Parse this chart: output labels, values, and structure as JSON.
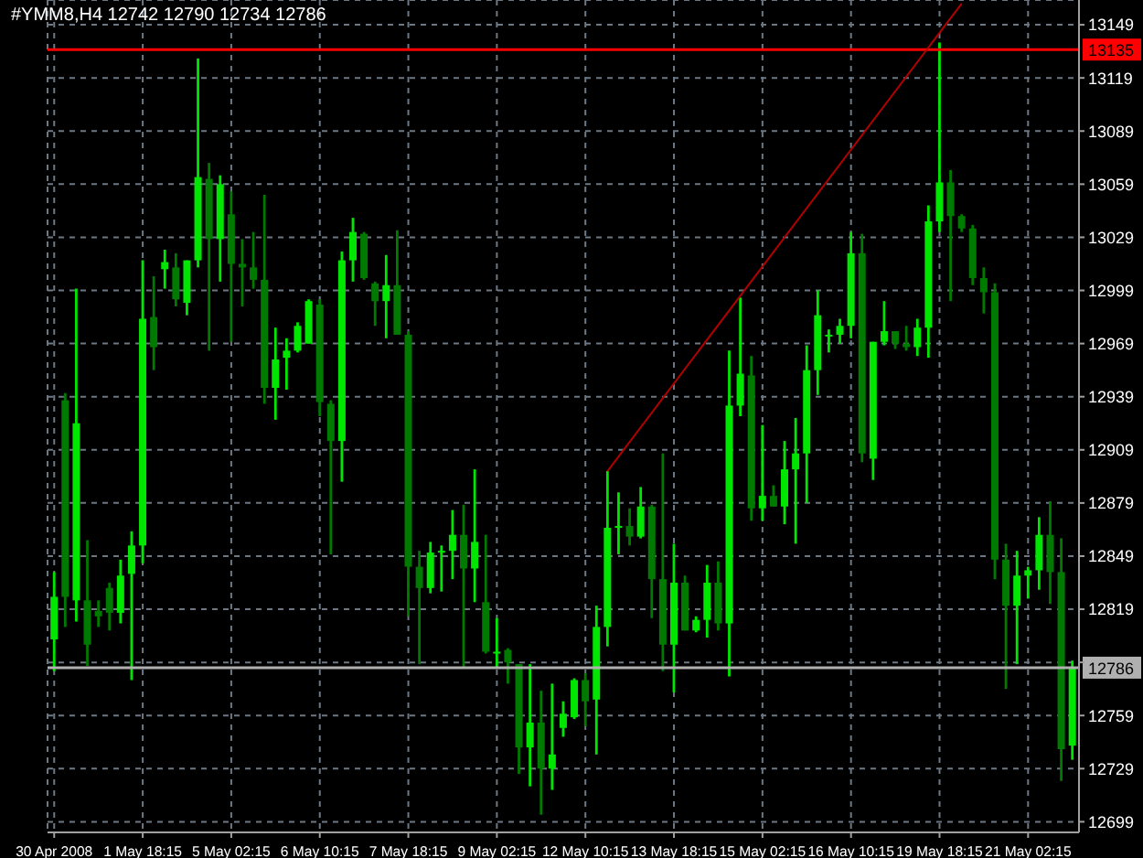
{
  "chart_data": {
    "type": "candlestick",
    "title": "#YMM8,H4 12742 12790 12734 12786",
    "categories": [
      "30 Apr 2008",
      null,
      null,
      null,
      null,
      null,
      null,
      null,
      "1 May 18:15",
      null,
      null,
      null,
      null,
      null,
      null,
      null,
      "5 May 02:15",
      null,
      null,
      null,
      null,
      null,
      null,
      null,
      "6 May 10:15",
      null,
      null,
      null,
      null,
      null,
      null,
      null,
      "7 May 18:15",
      null,
      null,
      null,
      null,
      null,
      null,
      null,
      "9 May 02:15",
      null,
      null,
      null,
      null,
      null,
      null,
      null,
      "12 May 10:15",
      null,
      null,
      null,
      null,
      null,
      null,
      null,
      "13 May 18:15",
      null,
      null,
      null,
      null,
      null,
      null,
      null,
      "15 May 02:15",
      null,
      null,
      null,
      null,
      null,
      null,
      null,
      "16 May 10:15",
      null,
      null,
      null,
      null,
      null,
      null,
      null,
      "19 May 18:15",
      null,
      null,
      null,
      null,
      null,
      null,
      null,
      "21 May 02:15",
      null,
      null,
      null,
      null
    ],
    "ohlc": [
      [
        12802,
        12840,
        12784,
        12826
      ],
      [
        12937,
        12941,
        12809,
        12826
      ],
      [
        12824,
        13000,
        12812,
        12924
      ],
      [
        12824,
        12858,
        12787,
        12799
      ],
      [
        12818,
        12824,
        12809,
        12815
      ],
      [
        12831,
        12834,
        12807,
        12817
      ],
      [
        12817,
        12847,
        12811,
        12838
      ],
      [
        12839,
        12863,
        12779,
        12855
      ],
      [
        12855,
        13016,
        12845,
        12983
      ],
      [
        12984,
        13007,
        12954,
        12967
      ],
      [
        13011,
        13022,
        13000,
        13015
      ],
      [
        13012,
        13020,
        12990,
        12994
      ],
      [
        12992,
        13016,
        12985,
        13016
      ],
      [
        13016,
        13130,
        13012,
        13063
      ],
      [
        13062,
        13071,
        12965,
        13028
      ],
      [
        13028,
        13064,
        13004,
        13059
      ],
      [
        13042,
        13055,
        12970,
        13014
      ],
      [
        13014,
        13028,
        12990,
        13012
      ],
      [
        13012,
        13032,
        13000,
        13005
      ],
      [
        13005,
        13053,
        12935,
        12944
      ],
      [
        12944,
        12978,
        12926,
        12960
      ],
      [
        12961,
        12972,
        12943,
        12965
      ],
      [
        12965,
        12981,
        12964,
        12979
      ],
      [
        12969,
        12994,
        12969,
        12993
      ],
      [
        12991,
        12994,
        12928,
        12936
      ],
      [
        12935,
        12937,
        12850,
        12914
      ],
      [
        12914,
        13021,
        12891,
        13016
      ],
      [
        13016,
        13040,
        13004,
        13032
      ],
      [
        13031,
        13032,
        13005,
        13006
      ],
      [
        13003,
        13004,
        12979,
        12993
      ],
      [
        12993,
        13019,
        12972,
        13002
      ],
      [
        13002,
        13033,
        12974,
        12974
      ],
      [
        12974,
        12976,
        12815,
        12843
      ],
      [
        12843,
        12852,
        12788,
        12831
      ],
      [
        12831,
        12857,
        12828,
        12851
      ],
      [
        12851,
        12855,
        12829,
        12852
      ],
      [
        12852,
        12875,
        12836,
        12861
      ],
      [
        12861,
        12878,
        12786,
        12842
      ],
      [
        12842,
        12898,
        12823,
        12857
      ],
      [
        12823,
        12861,
        12794,
        12795
      ],
      [
        12795,
        12814,
        12786,
        12795
      ],
      [
        12796,
        12797,
        12777,
        12789
      ],
      [
        12788,
        12788,
        12726,
        12741
      ],
      [
        12741,
        12788,
        12719,
        12755
      ],
      [
        12755,
        12773,
        12703,
        12729
      ],
      [
        12729,
        12777,
        12717,
        12737
      ],
      [
        12752,
        12767,
        12747,
        12760
      ],
      [
        12758,
        12780,
        12757,
        12779
      ],
      [
        12779,
        12783,
        12753,
        12767
      ],
      [
        12768,
        12821,
        12737,
        12809
      ],
      [
        12809,
        12897,
        12798,
        12865
      ],
      [
        12865,
        12885,
        12850,
        12866
      ],
      [
        12866,
        12876,
        12855,
        12860
      ],
      [
        12860,
        12888,
        12859,
        12877
      ],
      [
        12877,
        12878,
        12814,
        12836
      ],
      [
        12836,
        12907,
        12784,
        12799
      ],
      [
        12799,
        12856,
        12772,
        12834
      ],
      [
        12834,
        12838,
        12807,
        12807
      ],
      [
        12807,
        12815,
        12806,
        12813
      ],
      [
        12813,
        12844,
        12803,
        12834
      ],
      [
        12834,
        12846,
        12807,
        12811
      ],
      [
        12811,
        12965,
        12781,
        12934
      ],
      [
        12934,
        12995,
        12928,
        12952
      ],
      [
        12951,
        12962,
        12869,
        12876
      ],
      [
        12876,
        12923,
        12869,
        12883
      ],
      [
        12883,
        12889,
        12877,
        12877
      ],
      [
        12877,
        12914,
        12867,
        12898
      ],
      [
        12898,
        12927,
        12856,
        12907
      ],
      [
        12907,
        12968,
        12879,
        12954
      ],
      [
        12954,
        12999,
        12940,
        12985
      ],
      [
        12973,
        12977,
        12964,
        12974
      ],
      [
        12974,
        12983,
        12969,
        12979
      ],
      [
        12979,
        13032,
        12972,
        13020
      ],
      [
        13020,
        13031,
        12902,
        12907
      ],
      [
        12904,
        12970,
        12892,
        12970
      ],
      [
        12970,
        12993,
        12968,
        12976
      ],
      [
        12976,
        12976,
        12966,
        12969
      ],
      [
        12969,
        12979,
        12965,
        12967
      ],
      [
        12967,
        12983,
        12962,
        12978
      ],
      [
        12978,
        13047,
        12961,
        13038
      ],
      [
        13038,
        13139,
        13032,
        13060
      ],
      [
        13060,
        13067,
        12993,
        13041
      ],
      [
        13041,
        13042,
        13032,
        13034
      ],
      [
        13034,
        13036,
        13002,
        13006
      ],
      [
        13006,
        13012,
        12986,
        12998
      ],
      [
        12998,
        13003,
        12836,
        12847
      ],
      [
        12847,
        12856,
        12774,
        12821
      ],
      [
        12821,
        12852,
        12788,
        12838
      ],
      [
        12838,
        12843,
        12825,
        12841
      ],
      [
        12841,
        12871,
        12830,
        12861
      ],
      [
        12861,
        12880,
        12822,
        12840
      ],
      [
        12840,
        12859,
        12722,
        12740
      ],
      [
        12742,
        12790,
        12734,
        12786
      ]
    ],
    "colors": [
      "#00e600",
      "#007a00",
      "#00e600",
      "#007a00",
      "#007a00",
      "#007a00",
      "#00e600",
      "#00e600",
      "#00e600",
      "#007a00",
      "#00e600",
      "#007a00",
      "#00e600",
      "#00e600",
      "#007a00",
      "#00e600",
      "#007a00",
      "#007a00",
      "#007a00",
      "#007a00",
      "#00e600",
      "#00e600",
      "#00e600",
      "#00e600",
      "#007a00",
      "#007a00",
      "#00e600",
      "#00e600",
      "#007a00",
      "#007a00",
      "#00e600",
      "#007a00",
      "#007a00",
      "#007a00",
      "#00e600",
      "#00e600",
      "#00e600",
      "#007a00",
      "#00e600",
      "#007a00",
      "#00e600",
      "#007a00",
      "#007a00",
      "#00e600",
      "#007a00",
      "#00e600",
      "#00e600",
      "#00e600",
      "#007a00",
      "#00e600",
      "#00e600",
      "#00e600",
      "#007a00",
      "#00e600",
      "#007a00",
      "#007a00",
      "#00e600",
      "#007a00",
      "#00e600",
      "#00e600",
      "#007a00",
      "#00e600",
      "#00e600",
      "#007a00",
      "#00e600",
      "#007a00",
      "#00e600",
      "#00e600",
      "#00e600",
      "#00e600",
      "#00e600",
      "#00e600",
      "#00e600",
      "#007a00",
      "#00e600",
      "#00e600",
      "#007a00",
      "#007a00",
      "#00e600",
      "#00e600",
      "#00e600",
      "#007a00",
      "#007a00",
      "#007a00",
      "#007a00",
      "#007a00",
      "#007a00",
      "#00e600",
      "#00e600",
      "#00e600",
      "#007a00",
      "#007a00",
      "#00e600"
    ],
    "series": [
      {
        "type": "line",
        "color": "#b00000",
        "values": [
          null,
          null,
          null,
          null,
          null,
          null,
          null,
          null,
          null,
          null,
          null,
          null,
          null,
          null,
          null,
          null,
          null,
          null,
          null,
          null,
          null,
          null,
          null,
          null,
          null,
          null,
          null,
          null,
          null,
          null,
          null,
          null,
          null,
          null,
          null,
          null,
          null,
          null,
          null,
          null,
          null,
          null,
          null,
          null,
          null,
          null,
          null,
          null,
          null,
          null,
          12897,
          null,
          null,
          null,
          null,
          null,
          null,
          null,
          null,
          null,
          null,
          null,
          null,
          null,
          null,
          null,
          null,
          null,
          null,
          null,
          null,
          null,
          null,
          null,
          null,
          null,
          null,
          null,
          null,
          null,
          null,
          null,
          13161,
          null,
          null,
          null,
          null,
          null,
          null,
          null,
          null,
          null,
          null
        ]
      }
    ],
    "ylim": [
      12693,
      13163
    ],
    "yticks": [
      12699,
      12729,
      12759,
      {
        "value": 12789,
        "label": null
      },
      12819,
      12849,
      12879,
      12909,
      12939,
      12969,
      12999,
      13029,
      13059,
      13089,
      13119,
      13149
    ],
    "ref_lines": [
      {
        "axis": "y",
        "value": 13135,
        "label": "13135",
        "color": "#ff0000"
      },
      {
        "axis": "y",
        "value": 12786,
        "label": "12786",
        "color": "#b0b0b0"
      }
    ],
    "grid": true
  }
}
